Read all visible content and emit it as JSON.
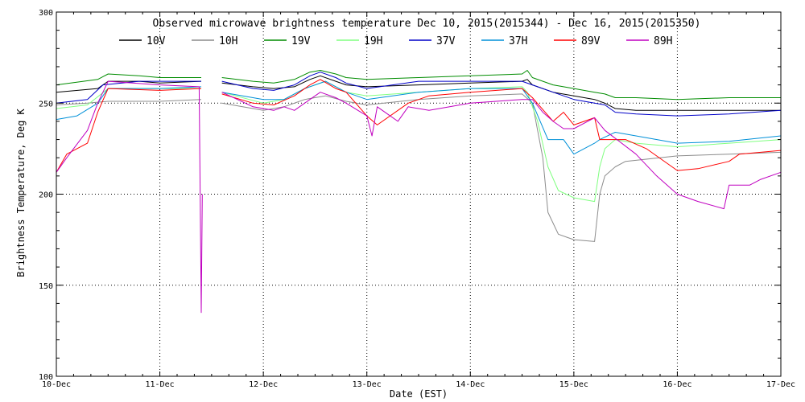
{
  "chart_data": {
    "type": "line",
    "title": "Observed microwave brightness temperature Dec 10, 2015(2015344) - Dec 16, 2015(2015350)",
    "xlabel": "Date (EST)",
    "ylabel": "Brightness Temperature, Deg K",
    "xlim": [
      0,
      7
    ],
    "ylim": [
      100,
      300
    ],
    "x_ticks": [
      0,
      1,
      2,
      3,
      4,
      5,
      6,
      7
    ],
    "x_tick_labels": [
      "10-Dec",
      "11-Dec",
      "12-Dec",
      "13-Dec",
      "14-Dec",
      "15-Dec",
      "16-Dec",
      "17-Dec"
    ],
    "y_ticks": [
      100,
      150,
      200,
      250,
      300
    ],
    "y_tick_labels": [
      "100",
      "150",
      "200",
      "250",
      "300"
    ],
    "grid": true,
    "legend_position": "top",
    "series": [
      {
        "name": "10V",
        "color": "#000000",
        "points": [
          [
            0,
            256
          ],
          [
            0.4,
            258
          ],
          [
            0.5,
            262
          ],
          [
            0.8,
            262
          ],
          [
            1.0,
            261
          ],
          [
            1.4,
            262
          ],
          [
            1.4,
            null
          ],
          [
            1.6,
            261
          ],
          [
            1.9,
            259
          ],
          [
            2.1,
            258
          ],
          [
            2.3,
            259
          ],
          [
            2.45,
            263
          ],
          [
            2.55,
            265
          ],
          [
            2.7,
            262
          ],
          [
            2.8,
            260
          ],
          [
            3.0,
            259
          ],
          [
            3.5,
            260
          ],
          [
            4.0,
            261
          ],
          [
            4.5,
            262
          ],
          [
            4.55,
            263
          ],
          [
            4.6,
            260
          ],
          [
            4.8,
            256
          ],
          [
            5.0,
            254
          ],
          [
            5.2,
            252
          ],
          [
            5.3,
            250
          ],
          [
            5.4,
            247
          ],
          [
            5.6,
            246
          ],
          [
            6.0,
            246
          ],
          [
            6.5,
            246
          ],
          [
            7,
            246
          ]
        ]
      },
      {
        "name": "10H",
        "color": "#8c8c8c",
        "points": [
          [
            0,
            249
          ],
          [
            0.3,
            250
          ],
          [
            0.5,
            251
          ],
          [
            1.0,
            251
          ],
          [
            1.4,
            252
          ],
          [
            1.4,
            null
          ],
          [
            1.6,
            250
          ],
          [
            2.0,
            246
          ],
          [
            2.2,
            248
          ],
          [
            2.4,
            252
          ],
          [
            2.6,
            254
          ],
          [
            2.8,
            251
          ],
          [
            3.0,
            249
          ],
          [
            3.5,
            252
          ],
          [
            4.0,
            254
          ],
          [
            4.5,
            255
          ],
          [
            4.6,
            250
          ],
          [
            4.7,
            220
          ],
          [
            4.75,
            190
          ],
          [
            4.85,
            178
          ],
          [
            4.95,
            176
          ],
          [
            5.0,
            175
          ],
          [
            5.2,
            174
          ],
          [
            5.25,
            200
          ],
          [
            5.3,
            210
          ],
          [
            5.4,
            215
          ],
          [
            5.5,
            218
          ],
          [
            6.0,
            221
          ],
          [
            6.5,
            222
          ],
          [
            7,
            223
          ]
        ]
      },
      {
        "name": "19V",
        "color": "#008c00",
        "points": [
          [
            0,
            260
          ],
          [
            0.4,
            263
          ],
          [
            0.5,
            266
          ],
          [
            0.8,
            265
          ],
          [
            1.0,
            264
          ],
          [
            1.4,
            264
          ],
          [
            1.4,
            null
          ],
          [
            1.6,
            264
          ],
          [
            1.9,
            262
          ],
          [
            2.1,
            261
          ],
          [
            2.3,
            263
          ],
          [
            2.45,
            267
          ],
          [
            2.55,
            268
          ],
          [
            2.7,
            266
          ],
          [
            2.8,
            264
          ],
          [
            3.0,
            263
          ],
          [
            3.5,
            264
          ],
          [
            4.0,
            265
          ],
          [
            4.5,
            266
          ],
          [
            4.55,
            268
          ],
          [
            4.6,
            264
          ],
          [
            4.8,
            260
          ],
          [
            5.0,
            258
          ],
          [
            5.2,
            256
          ],
          [
            5.3,
            255
          ],
          [
            5.4,
            253
          ],
          [
            5.6,
            253
          ],
          [
            6.0,
            252
          ],
          [
            6.5,
            253
          ],
          [
            7,
            253
          ]
        ]
      },
      {
        "name": "19H",
        "color": "#80ff80",
        "points": [
          [
            0,
            247
          ],
          [
            0.3,
            249
          ],
          [
            0.5,
            258
          ],
          [
            1.0,
            258
          ],
          [
            1.4,
            258
          ],
          [
            1.4,
            null
          ],
          [
            1.6,
            256
          ],
          [
            2.0,
            250
          ],
          [
            2.2,
            252
          ],
          [
            2.4,
            258
          ],
          [
            2.6,
            262
          ],
          [
            2.8,
            256
          ],
          [
            3.0,
            254
          ],
          [
            3.5,
            256
          ],
          [
            4.0,
            258
          ],
          [
            4.5,
            259
          ],
          [
            4.55,
            256
          ],
          [
            4.65,
            240
          ],
          [
            4.75,
            215
          ],
          [
            4.85,
            202
          ],
          [
            5.0,
            198
          ],
          [
            5.2,
            196
          ],
          [
            5.25,
            215
          ],
          [
            5.3,
            225
          ],
          [
            5.4,
            230
          ],
          [
            5.6,
            228
          ],
          [
            6.0,
            226
          ],
          [
            6.5,
            228
          ],
          [
            7,
            230
          ]
        ]
      },
      {
        "name": "37V",
        "color": "#0000c8",
        "points": [
          [
            0,
            250
          ],
          [
            0.3,
            252
          ],
          [
            0.45,
            260
          ],
          [
            0.8,
            262
          ],
          [
            1.0,
            262
          ],
          [
            1.4,
            262
          ],
          [
            1.4,
            null
          ],
          [
            1.6,
            262
          ],
          [
            1.9,
            258
          ],
          [
            2.1,
            257
          ],
          [
            2.3,
            260
          ],
          [
            2.45,
            265
          ],
          [
            2.55,
            267
          ],
          [
            2.7,
            264
          ],
          [
            2.8,
            261
          ],
          [
            3.0,
            258
          ],
          [
            3.5,
            262
          ],
          [
            4.0,
            262
          ],
          [
            4.5,
            262
          ],
          [
            4.6,
            260
          ],
          [
            4.8,
            256
          ],
          [
            5.0,
            252
          ],
          [
            5.2,
            250
          ],
          [
            5.3,
            249
          ],
          [
            5.4,
            245
          ],
          [
            5.6,
            244
          ],
          [
            6.0,
            243
          ],
          [
            6.5,
            244
          ],
          [
            7,
            246
          ]
        ]
      },
      {
        "name": "37H",
        "color": "#0090d8",
        "points": [
          [
            0,
            241
          ],
          [
            0.2,
            243
          ],
          [
            0.4,
            250
          ],
          [
            0.5,
            258
          ],
          [
            1.0,
            258
          ],
          [
            1.4,
            259
          ],
          [
            1.4,
            null
          ],
          [
            1.6,
            256
          ],
          [
            2.0,
            252
          ],
          [
            2.2,
            252
          ],
          [
            2.4,
            258
          ],
          [
            2.6,
            262
          ],
          [
            2.8,
            256
          ],
          [
            3.0,
            252
          ],
          [
            3.5,
            256
          ],
          [
            4.0,
            258
          ],
          [
            4.5,
            258
          ],
          [
            4.6,
            250
          ],
          [
            4.75,
            230
          ],
          [
            4.9,
            230
          ],
          [
            5.0,
            222
          ],
          [
            5.2,
            228
          ],
          [
            5.25,
            230
          ],
          [
            5.4,
            234
          ],
          [
            5.6,
            232
          ],
          [
            6.0,
            228
          ],
          [
            6.5,
            229
          ],
          [
            7,
            232
          ]
        ]
      },
      {
        "name": "89V",
        "color": "#ff0000",
        "points": [
          [
            0,
            212
          ],
          [
            0.1,
            222
          ],
          [
            0.3,
            228
          ],
          [
            0.4,
            245
          ],
          [
            0.5,
            258
          ],
          [
            1.0,
            257
          ],
          [
            1.4,
            258
          ],
          [
            1.4,
            null
          ],
          [
            1.6,
            255
          ],
          [
            1.9,
            250
          ],
          [
            2.1,
            249
          ],
          [
            2.3,
            254
          ],
          [
            2.45,
            260
          ],
          [
            2.55,
            263
          ],
          [
            2.7,
            258
          ],
          [
            2.8,
            256
          ],
          [
            3.0,
            243
          ],
          [
            3.1,
            238
          ],
          [
            3.4,
            250
          ],
          [
            3.6,
            254
          ],
          [
            4.0,
            256
          ],
          [
            4.5,
            258
          ],
          [
            4.6,
            253
          ],
          [
            4.8,
            240
          ],
          [
            4.9,
            245
          ],
          [
            5.0,
            238
          ],
          [
            5.2,
            242
          ],
          [
            5.25,
            230
          ],
          [
            5.5,
            230
          ],
          [
            5.7,
            225
          ],
          [
            6.0,
            213
          ],
          [
            6.2,
            214
          ],
          [
            6.5,
            218
          ],
          [
            6.6,
            222
          ],
          [
            7,
            224
          ]
        ]
      },
      {
        "name": "89H",
        "color": "#c000c0",
        "points": [
          [
            0,
            212
          ],
          [
            0.1,
            220
          ],
          [
            0.3,
            235
          ],
          [
            0.4,
            250
          ],
          [
            0.5,
            262
          ],
          [
            1.0,
            260
          ],
          [
            1.38,
            259
          ],
          [
            1.39,
            198
          ],
          [
            1.4,
            135
          ],
          [
            1.41,
            200
          ],
          [
            1.4,
            null
          ],
          [
            1.6,
            256
          ],
          [
            1.9,
            248
          ],
          [
            2.1,
            246
          ],
          [
            2.2,
            248
          ],
          [
            2.3,
            246
          ],
          [
            2.45,
            252
          ],
          [
            2.55,
            256
          ],
          [
            2.7,
            253
          ],
          [
            2.8,
            250
          ],
          [
            3.0,
            243
          ],
          [
            3.05,
            232
          ],
          [
            3.1,
            248
          ],
          [
            3.2,
            244
          ],
          [
            3.3,
            240
          ],
          [
            3.4,
            248
          ],
          [
            3.6,
            246
          ],
          [
            4.0,
            250
          ],
          [
            4.5,
            252
          ],
          [
            4.6,
            252
          ],
          [
            4.7,
            245
          ],
          [
            4.8,
            240
          ],
          [
            4.9,
            236
          ],
          [
            5.0,
            236
          ],
          [
            5.2,
            242
          ],
          [
            5.3,
            235
          ],
          [
            5.6,
            222
          ],
          [
            5.8,
            210
          ],
          [
            6.0,
            200
          ],
          [
            6.2,
            196
          ],
          [
            6.45,
            192
          ],
          [
            6.5,
            205
          ],
          [
            6.7,
            205
          ],
          [
            6.8,
            208
          ],
          [
            7,
            212
          ]
        ]
      }
    ]
  }
}
